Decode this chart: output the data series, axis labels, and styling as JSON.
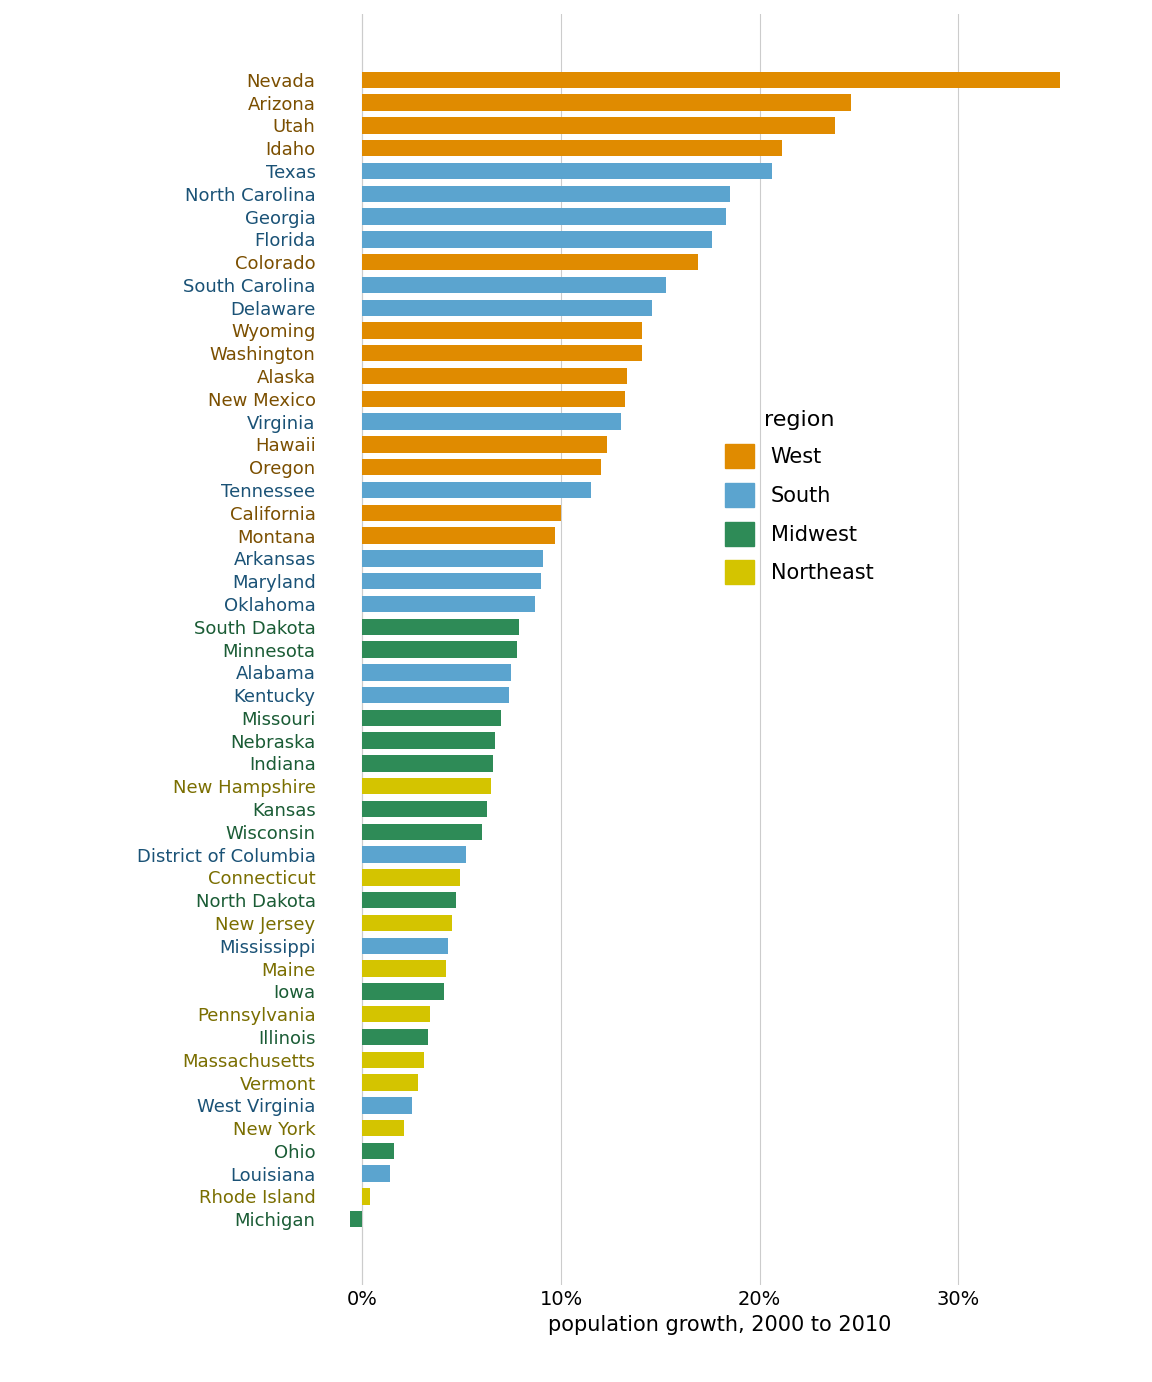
{
  "states": [
    "Nevada",
    "Arizona",
    "Utah",
    "Idaho",
    "Texas",
    "North Carolina",
    "Georgia",
    "Florida",
    "Colorado",
    "South Carolina",
    "Delaware",
    "Wyoming",
    "Washington",
    "Alaska",
    "New Mexico",
    "Virginia",
    "Hawaii",
    "Oregon",
    "Tennessee",
    "California",
    "Montana",
    "Arkansas",
    "Maryland",
    "Oklahoma",
    "South Dakota",
    "Minnesota",
    "Alabama",
    "Kentucky",
    "Missouri",
    "Nebraska",
    "Indiana",
    "New Hampshire",
    "Kansas",
    "Wisconsin",
    "District of Columbia",
    "Connecticut",
    "North Dakota",
    "New Jersey",
    "Mississippi",
    "Maine",
    "Iowa",
    "Pennsylvania",
    "Illinois",
    "Massachusetts",
    "Vermont",
    "West Virginia",
    "New York",
    "Ohio",
    "Louisiana",
    "Rhode Island",
    "Michigan"
  ],
  "values": [
    35.1,
    24.6,
    23.8,
    21.1,
    20.6,
    18.5,
    18.3,
    17.6,
    16.9,
    15.3,
    14.6,
    14.1,
    14.1,
    13.3,
    13.2,
    13.0,
    12.3,
    12.0,
    11.5,
    10.0,
    9.7,
    9.1,
    9.0,
    8.7,
    7.9,
    7.8,
    7.5,
    7.4,
    7.0,
    6.7,
    6.6,
    6.5,
    6.3,
    6.0,
    5.2,
    4.9,
    4.7,
    4.5,
    4.3,
    4.2,
    4.1,
    3.4,
    3.3,
    3.1,
    2.8,
    2.5,
    2.1,
    1.6,
    1.4,
    0.4,
    -0.6
  ],
  "regions": [
    "West",
    "West",
    "West",
    "West",
    "South",
    "South",
    "South",
    "South",
    "West",
    "South",
    "South",
    "West",
    "West",
    "West",
    "West",
    "South",
    "West",
    "West",
    "South",
    "West",
    "West",
    "South",
    "South",
    "South",
    "Midwest",
    "Midwest",
    "South",
    "South",
    "Midwest",
    "Midwest",
    "Midwest",
    "Northeast",
    "Midwest",
    "Midwest",
    "South",
    "Northeast",
    "Midwest",
    "Northeast",
    "South",
    "Northeast",
    "Midwest",
    "Northeast",
    "Midwest",
    "Northeast",
    "Northeast",
    "South",
    "Northeast",
    "Midwest",
    "South",
    "Northeast",
    "Midwest"
  ],
  "region_colors": {
    "West": "#E08B00",
    "South": "#5BA4CF",
    "Midwest": "#2E8B57",
    "Northeast": "#D4C400"
  },
  "region_text_colors": {
    "West": "#7B4F00",
    "South": "#1A5276",
    "Midwest": "#1A5C35",
    "Northeast": "#7A6E00"
  },
  "xlim": [
    -2,
    38
  ],
  "xticks": [
    0,
    10,
    20,
    30
  ],
  "xticklabels": [
    "0%",
    "10%",
    "20%",
    "30%"
  ],
  "xlabel": "population growth, 2000 to 2010",
  "legend_title": "region",
  "legend_order": [
    "West",
    "South",
    "Midwest",
    "Northeast"
  ]
}
